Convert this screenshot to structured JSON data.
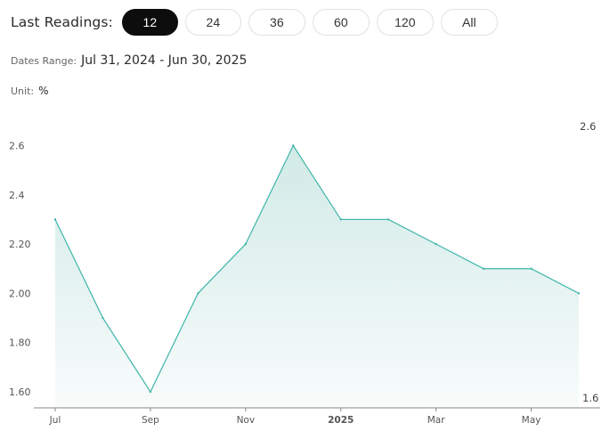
{
  "header": {
    "label": "Last Readings:",
    "buttons": [
      {
        "label": "12",
        "active": true
      },
      {
        "label": "24",
        "active": false
      },
      {
        "label": "36",
        "active": false
      },
      {
        "label": "60",
        "active": false
      },
      {
        "label": "120",
        "active": false
      },
      {
        "label": "All",
        "active": false
      }
    ]
  },
  "dates_range": {
    "label": "Dates Range:",
    "value": "Jul 31, 2024 - Jun 30, 2025"
  },
  "unit": {
    "label": "Unit:",
    "value": "%"
  },
  "colors": {
    "line": "#3fb5a8",
    "fill": "#cfe9e6"
  },
  "chart_data": {
    "type": "area",
    "x": [
      "2024-07-31",
      "2024-08-31",
      "2024-09-30",
      "2024-10-31",
      "2024-11-30",
      "2024-12-31",
      "2025-01-31",
      "2025-02-28",
      "2025-03-31",
      "2025-04-30",
      "2025-05-31",
      "2025-06-30"
    ],
    "values": [
      2.3,
      1.9,
      1.6,
      2.0,
      2.2,
      2.6,
      2.3,
      2.3,
      2.2,
      2.1,
      2.1,
      2.0
    ],
    "ylim": [
      1.55,
      2.7
    ],
    "yticks": [
      "1.60",
      "1.80",
      "2.00",
      "2.20",
      "2.4",
      "2.6"
    ],
    "xticks": [
      "Jul",
      "Sep",
      "Nov",
      "2025",
      "Mar",
      "May"
    ],
    "max_label": "2.6",
    "min_label": "1.6",
    "grid": false,
    "legend": "none"
  }
}
